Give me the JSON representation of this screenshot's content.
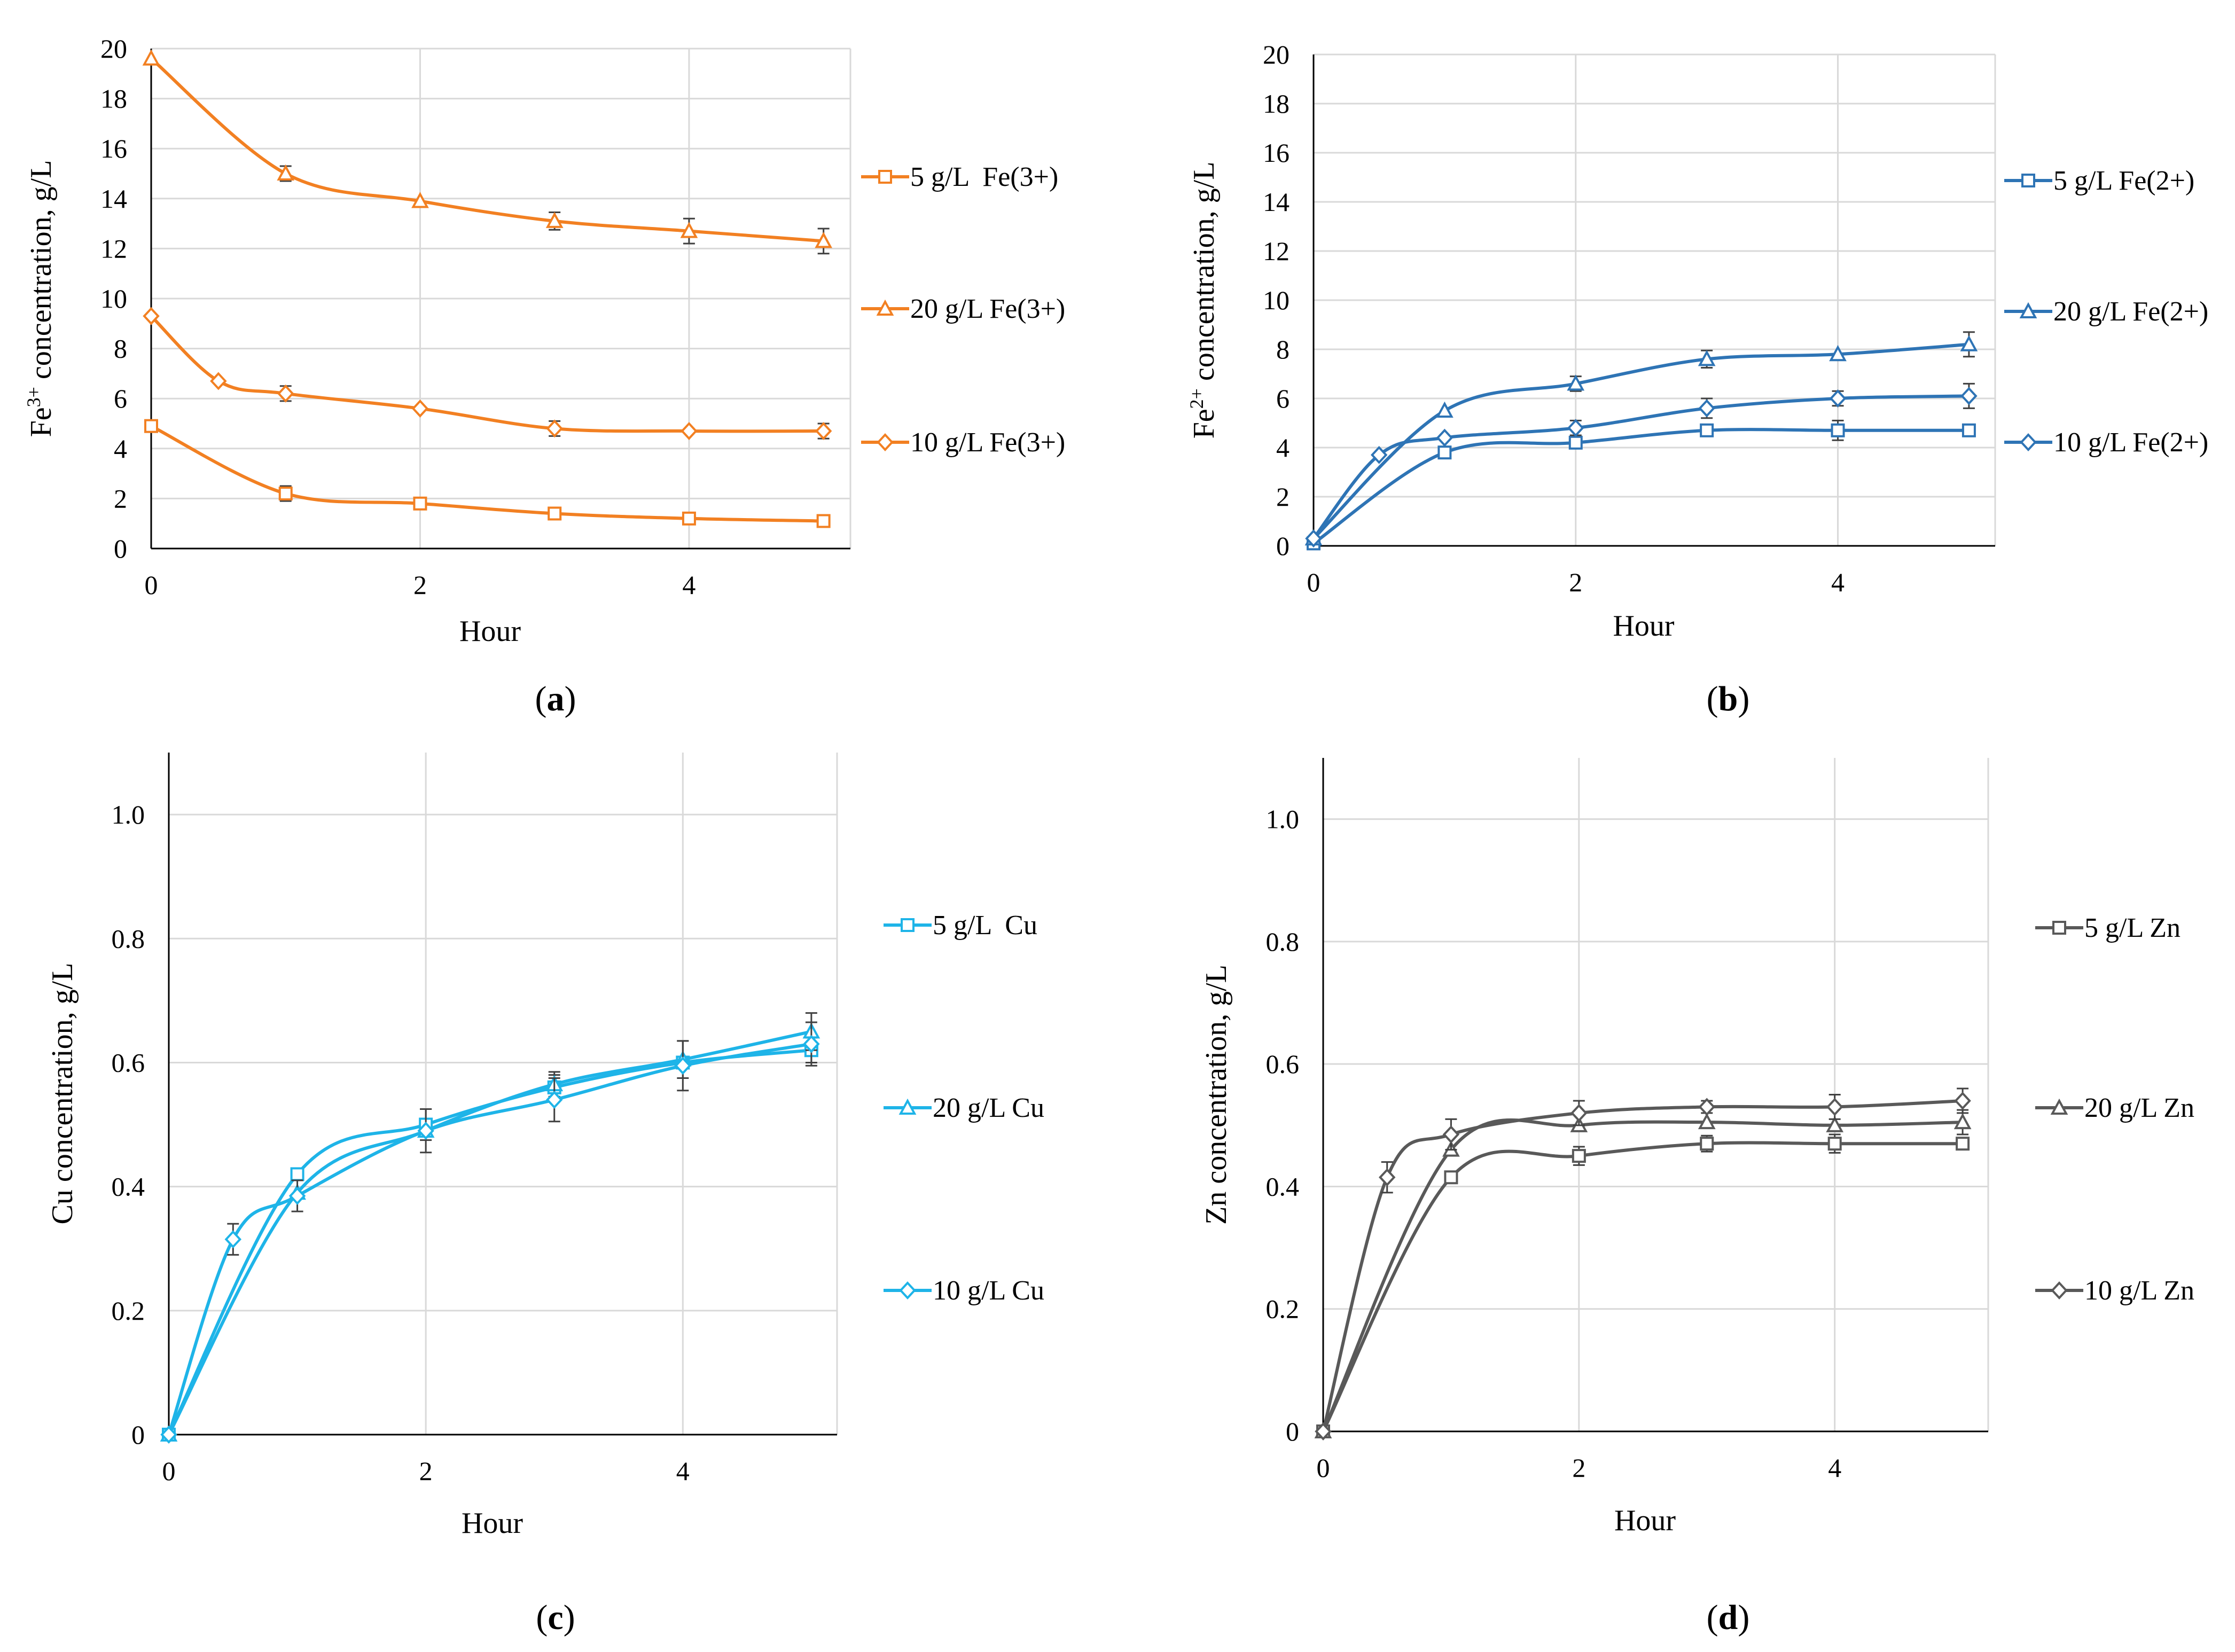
{
  "chart_data": [
    {
      "panel_label": "a",
      "caption": [
        "(",
        "a",
        ")"
      ],
      "type": "line",
      "color": "#F28022",
      "xlabel": "Hour",
      "ylabel": "Fe3+ concentration, g/L",
      "ylabel_parts": [
        "Fe",
        "3+",
        " concentration, g/L"
      ],
      "xlim": [
        0,
        5.2
      ],
      "ylim": [
        0,
        20
      ],
      "xticks": [
        "0",
        "2",
        "4"
      ],
      "xtick_values": [
        0,
        2,
        4
      ],
      "yticks": [
        "0",
        "2",
        "4",
        "6",
        "8",
        "10",
        "12",
        "14",
        "16",
        "18",
        "20"
      ],
      "ytick_values": [
        0,
        2,
        4,
        6,
        8,
        10,
        12,
        14,
        16,
        18,
        20
      ],
      "grid": "vertical",
      "legend": "right",
      "series": [
        {
          "name": "5 g/L  Fe(3+)",
          "marker": "square",
          "x": [
            0,
            1,
            2,
            3,
            4,
            5
          ],
          "y": [
            4.9,
            2.2,
            1.8,
            1.4,
            1.2,
            1.1
          ],
          "err": [
            0,
            0.3,
            0,
            0,
            0,
            0
          ]
        },
        {
          "name": "20 g/L Fe(3+)",
          "marker": "triangle",
          "x": [
            0,
            1,
            2,
            3,
            4,
            5
          ],
          "y": [
            19.6,
            15.0,
            13.9,
            13.1,
            12.7,
            12.3
          ],
          "err": [
            0,
            0.3,
            0,
            0.35,
            0.5,
            0.5
          ]
        },
        {
          "name": "10 g/L Fe(3+)",
          "marker": "diamond",
          "x": [
            0,
            0.5,
            1,
            2,
            3,
            4,
            5
          ],
          "y": [
            9.3,
            6.7,
            6.2,
            5.6,
            4.8,
            4.7,
            4.7
          ],
          "err": [
            0,
            0,
            0.3,
            0,
            0.3,
            0,
            0.3
          ]
        }
      ]
    },
    {
      "panel_label": "b",
      "caption": [
        "(",
        "b",
        ")"
      ],
      "type": "line",
      "color": "#2E74B5",
      "xlabel": "Hour",
      "ylabel": "Fe2+ concentration, g/L",
      "ylabel_parts": [
        "Fe",
        "2+",
        " concentration, g/L"
      ],
      "xlim": [
        0,
        5.2
      ],
      "ylim": [
        0,
        20
      ],
      "xticks": [
        "0",
        "2",
        "4"
      ],
      "xtick_values": [
        0,
        2,
        4
      ],
      "yticks": [
        "0",
        "2",
        "4",
        "6",
        "8",
        "10",
        "12",
        "14",
        "16",
        "18",
        "20"
      ],
      "ytick_values": [
        0,
        2,
        4,
        6,
        8,
        10,
        12,
        14,
        16,
        18,
        20
      ],
      "grid": "vertical",
      "legend": "right",
      "series": [
        {
          "name": "5 g/L Fe(2+)",
          "marker": "square",
          "x": [
            0,
            1,
            2,
            3,
            4,
            5
          ],
          "y": [
            0.1,
            3.8,
            4.2,
            4.7,
            4.7,
            4.7
          ],
          "err": [
            0,
            0,
            0,
            0,
            0.4,
            0
          ]
        },
        {
          "name": "20 g/L Fe(2+)",
          "marker": "triangle",
          "x": [
            0,
            1,
            2,
            3,
            4,
            5
          ],
          "y": [
            0.3,
            5.5,
            6.6,
            7.6,
            7.8,
            8.2
          ],
          "err": [
            0,
            0,
            0.3,
            0.35,
            0,
            0.5
          ]
        },
        {
          "name": "10 g/L Fe(2+)",
          "marker": "diamond",
          "x": [
            0,
            0.5,
            1,
            2,
            3,
            4,
            5
          ],
          "y": [
            0.3,
            3.7,
            4.4,
            4.8,
            5.6,
            6.0,
            6.1
          ],
          "err": [
            0,
            0,
            0,
            0.3,
            0.4,
            0.3,
            0.5
          ]
        }
      ]
    },
    {
      "panel_label": "c",
      "caption": [
        "(",
        "c",
        ")"
      ],
      "type": "line",
      "color": "#1EB4E8",
      "xlabel": "Hour",
      "ylabel": "Cu concentration, g/L",
      "ylabel_parts": [
        "Cu concentration, g/L"
      ],
      "xlim": [
        0,
        5.2
      ],
      "ylim": [
        0,
        1.1
      ],
      "xticks": [
        "0",
        "2",
        "4"
      ],
      "xtick_values": [
        0,
        2,
        4
      ],
      "yticks": [
        "0",
        "0.2",
        "0.4",
        "0.6",
        "0.8",
        "1.0"
      ],
      "ytick_values": [
        0,
        0.2,
        0.4,
        0.6,
        0.8,
        1.0
      ],
      "grid": "both",
      "legend": "right",
      "series": [
        {
          "name": "5 g/L  Cu",
          "marker": "square",
          "x": [
            0,
            1,
            2,
            3,
            4,
            5
          ],
          "y": [
            0,
            0.42,
            0.5,
            0.56,
            0.6,
            0.62
          ],
          "err": [
            0,
            0,
            0.025,
            0.02,
            0,
            0.02
          ]
        },
        {
          "name": "20 g/L Cu",
          "marker": "triangle",
          "x": [
            0,
            1,
            2,
            3,
            4,
            5
          ],
          "y": [
            0,
            0.39,
            0.49,
            0.565,
            0.605,
            0.65
          ],
          "err": [
            0,
            0,
            0,
            0.02,
            0.03,
            0.03
          ]
        },
        {
          "name": "10 g/L Cu",
          "marker": "diamond",
          "x": [
            0,
            0.5,
            1,
            2,
            3,
            4,
            5
          ],
          "y": [
            0,
            0.315,
            0.385,
            0.49,
            0.54,
            0.595,
            0.63
          ],
          "err": [
            0,
            0.025,
            0.025,
            0.035,
            0.035,
            0.04,
            0.035
          ]
        }
      ]
    },
    {
      "panel_label": "d",
      "caption": [
        "(",
        "d",
        ")"
      ],
      "type": "line",
      "color": "#595959",
      "xlabel": "Hour",
      "ylabel": "Zn concentration, g/L",
      "ylabel_parts": [
        "Zn concentration, g/L"
      ],
      "xlim": [
        0,
        5.2
      ],
      "ylim": [
        0,
        1.1
      ],
      "xticks": [
        "0",
        "2",
        "4"
      ],
      "xtick_values": [
        0,
        2,
        4
      ],
      "yticks": [
        "0",
        "0.2",
        "0.4",
        "0.6",
        "0.8",
        "1.0"
      ],
      "ytick_values": [
        0,
        0.2,
        0.4,
        0.6,
        0.8,
        1.0
      ],
      "grid": "both",
      "legend": "right",
      "series": [
        {
          "name": "5 g/L Zn",
          "marker": "square",
          "x": [
            0,
            1,
            2,
            3,
            4,
            5
          ],
          "y": [
            0,
            0.415,
            0.45,
            0.47,
            0.47,
            0.47
          ],
          "err": [
            0,
            0,
            0.015,
            0.013,
            0.015,
            0
          ]
        },
        {
          "name": "20 g/L Zn",
          "marker": "triangle",
          "x": [
            0,
            1,
            2,
            3,
            4,
            5
          ],
          "y": [
            0,
            0.46,
            0.5,
            0.505,
            0.5,
            0.505
          ],
          "err": [
            0,
            0,
            0,
            0,
            0,
            0.02
          ]
        },
        {
          "name": "10 g/L Zn",
          "marker": "diamond",
          "x": [
            0,
            0.5,
            1,
            2,
            3,
            4,
            5
          ],
          "y": [
            0,
            0.415,
            0.485,
            0.52,
            0.53,
            0.53,
            0.54
          ],
          "err": [
            0,
            0.025,
            0.025,
            0.02,
            0.01,
            0.02,
            0.02
          ]
        }
      ]
    }
  ]
}
